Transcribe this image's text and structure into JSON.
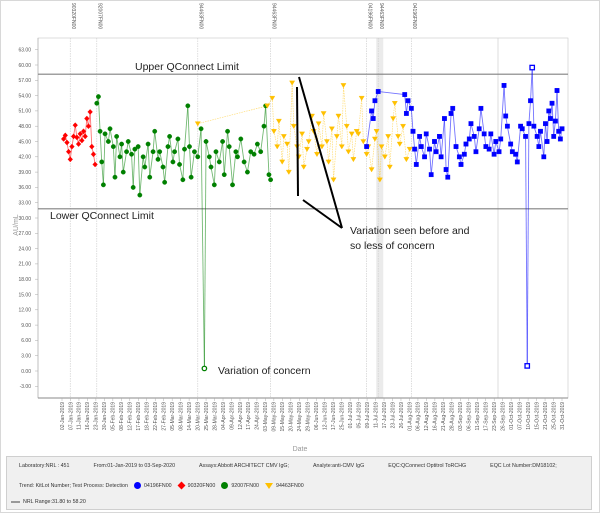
{
  "chart_data": {
    "type": "line",
    "xlabel": "Date",
    "ylabel": "AU/mL",
    "ylim": [
      -3,
      63
    ],
    "yticks": [
      "63.00",
      "60.00",
      "57.00",
      "54.00",
      "51.00",
      "48.00",
      "45.00",
      "42.00",
      "39.00",
      "36.00",
      "33.00",
      "30.00",
      "27.00",
      "24.00",
      "21.00",
      "18.00",
      "15.00",
      "12.00",
      "9.00",
      "6.00",
      "3.00",
      "0.00",
      "-3.00"
    ],
    "xticks": [
      "02-Jan-2019",
      "07-Jan-2019",
      "11-Jan-2019",
      "16-Jan-2019",
      "23-Jan-2019",
      "30-Jan-2019",
      "05-Feb-2019",
      "08-Feb-2019",
      "12-Feb-2019",
      "17-Feb-2019",
      "18-Feb-2019",
      "22-Feb-2019",
      "27-Feb-2019",
      "05-Mar-2019",
      "08-Mar-2019",
      "14-Mar-2019",
      "20-Mar-2019",
      "25-Mar-2019",
      "28-Mar-2019",
      "04-Apr-2019",
      "09-Apr-2019",
      "12-Apr-2019",
      "17-Apr-2019",
      "24-Apr-2019",
      "03-May-2019",
      "09-May-2019",
      "15-May-2019",
      "20-May-2019",
      "24-May-2019",
      "29-May-2019",
      "06-Jun-2019",
      "12-Jun-2019",
      "17-Jun-2019",
      "25-Jun-2019",
      "01-Jul-2019",
      "05-Jul-2019",
      "09-Jul-2019",
      "11-Jul-2019",
      "17-Jul-2019",
      "23-Jul-2019",
      "26-Jul-2019",
      "01-Aug-2019",
      "06-Aug-2019",
      "12-Aug-2019",
      "16-Aug-2019",
      "21-Aug-2019",
      "28-Aug-2019",
      "03-Sep-2019",
      "06-Sep-2019",
      "11-Sep-2019",
      "17-Sep-2019",
      "23-Sep-2019",
      "26-Sep-2019",
      "01-Oct-2019",
      "07-Oct-2019",
      "10-Oct-2019",
      "15-Oct-2019",
      "21-Oct-2019",
      "25-Oct-2019",
      "31-Oct-2019"
    ],
    "xrange": [
      "2019-01-02",
      "2019-10-31"
    ],
    "grid": false,
    "limits": {
      "upper": 58.2,
      "lower": 31.8,
      "upper_label": "Upper QConnect Limit",
      "lower_label": "Lower QConnect Limit",
      "color": "#808080"
    },
    "lot_changes": [
      {
        "date": "2019-01-07",
        "label": "90320FN00"
      },
      {
        "date": "2019-01-23",
        "label": "92007FN00"
      },
      {
        "date": "2019-03-25",
        "label": "94463FN00"
      },
      {
        "date": "2019-05-08",
        "label": "94463FN00"
      },
      {
        "date": "2019-07-05",
        "label": "04196FN00"
      },
      {
        "date": "2019-07-12",
        "label": "94463FN00"
      },
      {
        "date": "2019-08-01",
        "label": "04196FN00"
      }
    ],
    "series": [
      {
        "name": "90320FN00",
        "color": "#ff0000",
        "marker": "diamond",
        "points": [
          [
            "2019-01-03",
            45.5
          ],
          [
            "2019-01-04",
            46.2
          ],
          [
            "2019-01-05",
            44.8
          ],
          [
            "2019-01-06",
            43.0
          ],
          [
            "2019-01-07",
            41.5
          ],
          [
            "2019-01-08",
            44.0
          ],
          [
            "2019-01-09",
            46.0
          ],
          [
            "2019-01-10",
            48.2
          ],
          [
            "2019-01-11",
            45.8
          ],
          [
            "2019-01-12",
            44.5
          ],
          [
            "2019-01-13",
            46.5
          ],
          [
            "2019-01-14",
            45.2
          ],
          [
            "2019-01-15",
            47.0
          ],
          [
            "2019-01-16",
            46.0
          ],
          [
            "2019-01-17",
            49.5
          ],
          [
            "2019-01-18",
            48.0
          ],
          [
            "2019-01-19",
            50.8
          ],
          [
            "2019-01-20",
            44.0
          ],
          [
            "2019-01-21",
            42.5
          ],
          [
            "2019-01-22",
            40.5
          ]
        ]
      },
      {
        "name": "92007FN00",
        "color": "#008000",
        "marker": "circle",
        "points": [
          [
            "2019-01-23",
            52.5
          ],
          [
            "2019-01-24",
            53.8
          ],
          [
            "2019-01-25",
            47.0
          ],
          [
            "2019-01-26",
            41.0
          ],
          [
            "2019-01-27",
            36.5
          ],
          [
            "2019-01-28",
            46.5
          ],
          [
            "2019-01-30",
            45.0
          ],
          [
            "2019-01-31",
            47.5
          ],
          [
            "2019-02-02",
            44.0
          ],
          [
            "2019-02-03",
            38.0
          ],
          [
            "2019-02-04",
            46.0
          ],
          [
            "2019-02-06",
            42.0
          ],
          [
            "2019-02-07",
            44.5
          ],
          [
            "2019-02-08",
            39.0
          ],
          [
            "2019-02-10",
            43.0
          ],
          [
            "2019-02-11",
            45.0
          ],
          [
            "2019-02-13",
            42.5
          ],
          [
            "2019-02-14",
            36.0
          ],
          [
            "2019-02-15",
            43.5
          ],
          [
            "2019-02-17",
            44.0
          ],
          [
            "2019-02-18",
            34.5
          ],
          [
            "2019-02-20",
            42.0
          ],
          [
            "2019-02-21",
            40.0
          ],
          [
            "2019-02-23",
            44.5
          ],
          [
            "2019-02-24",
            38.0
          ],
          [
            "2019-02-26",
            43.0
          ],
          [
            "2019-02-27",
            47.0
          ],
          [
            "2019-03-01",
            41.5
          ],
          [
            "2019-03-02",
            43.0
          ],
          [
            "2019-03-04",
            40.0
          ],
          [
            "2019-03-05",
            37.0
          ],
          [
            "2019-03-07",
            44.0
          ],
          [
            "2019-03-08",
            46.0
          ],
          [
            "2019-03-10",
            41.0
          ],
          [
            "2019-03-11",
            43.0
          ],
          [
            "2019-03-13",
            45.5
          ],
          [
            "2019-03-14",
            40.5
          ],
          [
            "2019-03-16",
            37.5
          ],
          [
            "2019-03-17",
            43.5
          ],
          [
            "2019-03-19",
            52.0
          ],
          [
            "2019-03-20",
            44.0
          ],
          [
            "2019-03-21",
            38.0
          ],
          [
            "2019-03-23",
            43.0
          ],
          [
            "2019-03-25",
            42.0
          ],
          [
            "2019-03-27",
            47.5
          ],
          [
            "2019-03-29",
            0.5
          ],
          [
            "2019-03-30",
            45.0
          ],
          [
            "2019-04-01",
            42.0
          ],
          [
            "2019-04-02",
            40.0
          ],
          [
            "2019-04-04",
            36.5
          ],
          [
            "2019-04-05",
            43.0
          ],
          [
            "2019-04-07",
            41.0
          ],
          [
            "2019-04-09",
            45.0
          ],
          [
            "2019-04-10",
            38.5
          ],
          [
            "2019-04-12",
            47.0
          ],
          [
            "2019-04-13",
            44.0
          ],
          [
            "2019-04-15",
            36.5
          ],
          [
            "2019-04-17",
            43.0
          ],
          [
            "2019-04-18",
            42.0
          ],
          [
            "2019-04-20",
            45.5
          ],
          [
            "2019-04-22",
            41.0
          ],
          [
            "2019-04-24",
            39.0
          ],
          [
            "2019-04-26",
            43.0
          ],
          [
            "2019-04-28",
            42.5
          ],
          [
            "2019-04-30",
            44.5
          ],
          [
            "2019-05-02",
            43.0
          ],
          [
            "2019-05-04",
            48.0
          ],
          [
            "2019-05-05",
            52.0
          ],
          [
            "2019-05-07",
            38.5
          ],
          [
            "2019-05-08",
            37.5
          ]
        ]
      },
      {
        "name": "94463FN00",
        "color": "#ffc000",
        "marker": "triangle-down",
        "points": [
          [
            "2019-03-25",
            48.5
          ],
          [
            "2019-05-06",
            52.0
          ],
          [
            "2019-05-09",
            53.5
          ],
          [
            "2019-05-10",
            47.0
          ],
          [
            "2019-05-12",
            44.0
          ],
          [
            "2019-05-13",
            49.0
          ],
          [
            "2019-05-15",
            41.0
          ],
          [
            "2019-05-16",
            46.0
          ],
          [
            "2019-05-18",
            44.5
          ],
          [
            "2019-05-19",
            39.0
          ],
          [
            "2019-05-21",
            56.5
          ],
          [
            "2019-05-22",
            48.0
          ],
          [
            "2019-05-24",
            44.0
          ],
          [
            "2019-05-25",
            42.0
          ],
          [
            "2019-05-27",
            46.5
          ],
          [
            "2019-05-28",
            40.0
          ],
          [
            "2019-05-30",
            43.5
          ],
          [
            "2019-05-31",
            45.0
          ],
          [
            "2019-06-02",
            50.0
          ],
          [
            "2019-06-03",
            47.0
          ],
          [
            "2019-06-05",
            42.5
          ],
          [
            "2019-06-06",
            48.5
          ],
          [
            "2019-06-08",
            44.0
          ],
          [
            "2019-06-09",
            50.5
          ],
          [
            "2019-06-11",
            45.0
          ],
          [
            "2019-06-12",
            41.0
          ],
          [
            "2019-06-14",
            47.5
          ],
          [
            "2019-06-15",
            37.5
          ],
          [
            "2019-06-17",
            46.0
          ],
          [
            "2019-06-18",
            50.0
          ],
          [
            "2019-06-20",
            44.0
          ],
          [
            "2019-06-21",
            56.0
          ],
          [
            "2019-06-23",
            48.0
          ],
          [
            "2019-06-24",
            43.0
          ],
          [
            "2019-06-26",
            46.5
          ],
          [
            "2019-06-27",
            41.5
          ],
          [
            "2019-06-29",
            47.0
          ],
          [
            "2019-06-30",
            46.5
          ],
          [
            "2019-07-02",
            53.5
          ],
          [
            "2019-07-03",
            45.0
          ],
          [
            "2019-07-05",
            42.5
          ],
          [
            "2019-07-06",
            44.0
          ],
          [
            "2019-07-08",
            39.5
          ],
          [
            "2019-07-10",
            45.5
          ],
          [
            "2019-07-11",
            47.0
          ],
          [
            "2019-07-13",
            37.5
          ],
          [
            "2019-07-14",
            44.0
          ],
          [
            "2019-07-16",
            42.0
          ],
          [
            "2019-07-18",
            46.0
          ],
          [
            "2019-07-19",
            40.0
          ],
          [
            "2019-07-21",
            49.5
          ],
          [
            "2019-07-22",
            52.5
          ],
          [
            "2019-07-24",
            46.0
          ],
          [
            "2019-07-25",
            44.5
          ],
          [
            "2019-07-27",
            48.0
          ],
          [
            "2019-07-29",
            41.5
          ],
          [
            "2019-07-31",
            43.5
          ]
        ]
      },
      {
        "name": "04196FN00",
        "color": "#0000ff",
        "marker": "square",
        "points": [
          [
            "2019-07-05",
            44.0
          ],
          [
            "2019-07-08",
            51.0
          ],
          [
            "2019-07-09",
            49.5
          ],
          [
            "2019-07-10",
            53.0
          ],
          [
            "2019-07-12",
            54.8
          ],
          [
            "2019-07-28",
            54.2
          ],
          [
            "2019-07-29",
            50.5
          ],
          [
            "2019-07-30",
            53.0
          ],
          [
            "2019-08-01",
            51.5
          ],
          [
            "2019-08-02",
            47.0
          ],
          [
            "2019-08-03",
            43.5
          ],
          [
            "2019-08-04",
            40.5
          ],
          [
            "2019-08-06",
            46.0
          ],
          [
            "2019-08-07",
            44.0
          ],
          [
            "2019-08-09",
            42.0
          ],
          [
            "2019-08-10",
            46.5
          ],
          [
            "2019-08-12",
            43.5
          ],
          [
            "2019-08-13",
            38.5
          ],
          [
            "2019-08-15",
            45.0
          ],
          [
            "2019-08-16",
            43.0
          ],
          [
            "2019-08-18",
            46.0
          ],
          [
            "2019-08-19",
            42.0
          ],
          [
            "2019-08-21",
            49.5
          ],
          [
            "2019-08-22",
            39.5
          ],
          [
            "2019-08-23",
            38.0
          ],
          [
            "2019-08-25",
            50.5
          ],
          [
            "2019-08-26",
            51.5
          ],
          [
            "2019-08-28",
            44.0
          ],
          [
            "2019-08-30",
            42.0
          ],
          [
            "2019-08-31",
            40.5
          ],
          [
            "2019-09-02",
            42.5
          ],
          [
            "2019-09-03",
            44.5
          ],
          [
            "2019-09-05",
            45.5
          ],
          [
            "2019-09-06",
            48.5
          ],
          [
            "2019-09-08",
            46.0
          ],
          [
            "2019-09-09",
            43.0
          ],
          [
            "2019-09-11",
            47.5
          ],
          [
            "2019-09-12",
            51.5
          ],
          [
            "2019-09-14",
            46.5
          ],
          [
            "2019-09-15",
            44.0
          ],
          [
            "2019-09-17",
            43.5
          ],
          [
            "2019-09-18",
            46.5
          ],
          [
            "2019-09-20",
            42.5
          ],
          [
            "2019-09-21",
            45.0
          ],
          [
            "2019-09-23",
            43.0
          ],
          [
            "2019-09-24",
            45.5
          ],
          [
            "2019-09-26",
            56.0
          ],
          [
            "2019-09-27",
            50.0
          ],
          [
            "2019-09-28",
            48.0
          ],
          [
            "2019-09-30",
            44.5
          ],
          [
            "2019-10-01",
            43.0
          ],
          [
            "2019-10-03",
            42.5
          ],
          [
            "2019-10-04",
            41.0
          ],
          [
            "2019-10-06",
            48.0
          ],
          [
            "2019-10-07",
            47.5
          ],
          [
            "2019-10-09",
            46.0
          ],
          [
            "2019-10-10",
            1.0
          ],
          [
            "2019-10-11",
            48.5
          ],
          [
            "2019-10-12",
            53.0
          ],
          [
            "2019-10-13",
            59.5
          ],
          [
            "2019-10-14",
            48.0
          ],
          [
            "2019-10-16",
            46.0
          ],
          [
            "2019-10-17",
            44.0
          ],
          [
            "2019-10-18",
            47.0
          ],
          [
            "2019-10-20",
            42.0
          ],
          [
            "2019-10-21",
            48.5
          ],
          [
            "2019-10-22",
            45.0
          ],
          [
            "2019-10-23",
            51.0
          ],
          [
            "2019-10-24",
            49.5
          ],
          [
            "2019-10-25",
            52.5
          ],
          [
            "2019-10-26",
            46.0
          ],
          [
            "2019-10-27",
            49.0
          ],
          [
            "2019-10-28",
            55.0
          ],
          [
            "2019-10-29",
            47.0
          ],
          [
            "2019-10-30",
            45.5
          ],
          [
            "2019-10-31",
            47.5
          ]
        ]
      }
    ],
    "annotations": {
      "less_concern_line1": "Variation seen before and",
      "less_concern_line2": "so less of concern",
      "concern": "Variation of concern"
    }
  },
  "legend": {
    "laboratory": "Laboratory:NRL : 451",
    "from": "From:01-Jan-2019 to 03-Sep-2020",
    "assays": "Assays:Abbott ARCHITECT CMV IgG;",
    "analyte": "Analyte:anti-CMV IgG",
    "eqc": "EQC:QConnect Optitrol ToRCHG",
    "eqc_lot": "EQC Lot Number:DM18102;",
    "trend": "Trend: KitLot Number; Test Process: Detection",
    "items": [
      {
        "label": "04196FN00",
        "color": "#0000ff"
      },
      {
        "label": "90320FN00",
        "color": "#ff0000"
      },
      {
        "label": "92007FN00",
        "color": "#008000"
      },
      {
        "label": "94463FN00",
        "color": "#ffc000"
      }
    ],
    "range": "NRL Range:31.80 to 58.20"
  }
}
